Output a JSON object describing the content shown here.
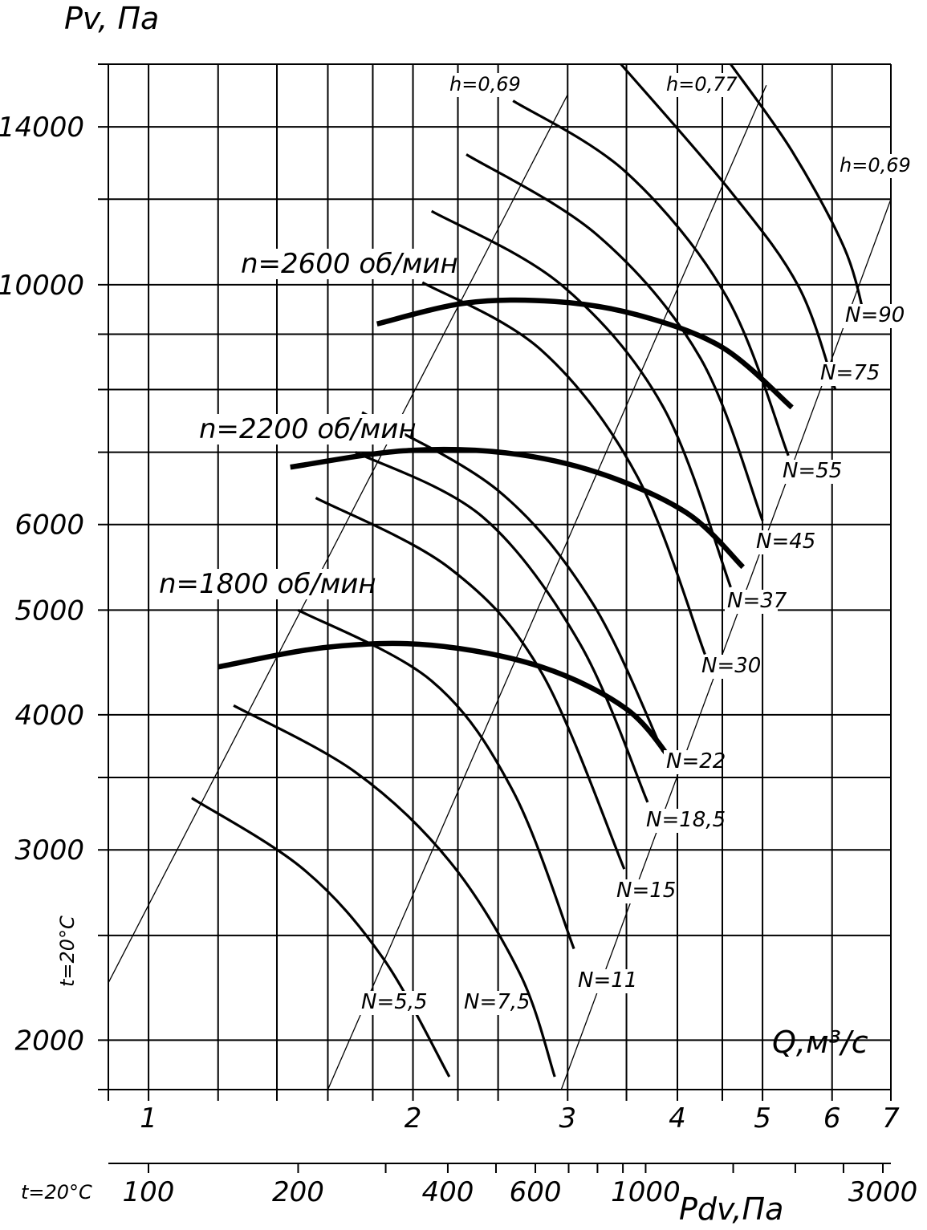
{
  "chart_data": {
    "type": "line",
    "title": "",
    "ylabel": "Pv, Па",
    "xlabel": "Q,м³/с",
    "x2label": "Pdv,Па",
    "temperature_label": "t=20°C",
    "yscale": "log",
    "xscale": "log",
    "ylim": [
      1800,
      16000
    ],
    "xlim": [
      0.9,
      7
    ],
    "y_ticks": [
      "14000",
      "10000",
      "6000",
      "5000",
      "4000",
      "3000",
      "2000"
    ],
    "x_ticks": [
      "1",
      "2",
      "3",
      "4",
      "5",
      "6",
      "7"
    ],
    "x2_ticks": [
      "100",
      "200",
      "400",
      "600",
      "1000",
      "3000"
    ],
    "speed_curves": [
      {
        "name": "n=2600 об/мин",
        "points": [
          [
            1.82,
            9200
          ],
          [
            2.3,
            9620
          ],
          [
            2.9,
            9650
          ],
          [
            3.6,
            9380
          ],
          [
            4.5,
            8750
          ],
          [
            5.4,
            7700
          ]
        ]
      },
      {
        "name": "n=2200 об/мин",
        "points": [
          [
            1.45,
            6780
          ],
          [
            1.95,
            7020
          ],
          [
            2.55,
            6990
          ],
          [
            3.25,
            6700
          ],
          [
            4.1,
            6150
          ],
          [
            4.75,
            5480
          ]
        ]
      },
      {
        "name": "n=1800 об/мин",
        "points": [
          [
            1.2,
            4430
          ],
          [
            1.6,
            4620
          ],
          [
            2.1,
            4640
          ],
          [
            2.8,
            4430
          ],
          [
            3.5,
            4050
          ],
          [
            3.95,
            3620
          ]
        ]
      }
    ],
    "power_curves": [
      {
        "name": "N=5,5",
        "points": [
          [
            1.12,
            3350
          ],
          [
            1.5,
            2880
          ],
          [
            1.85,
            2380
          ],
          [
            2.2,
            1850
          ]
        ]
      },
      {
        "name": "N=7,5",
        "points": [
          [
            1.25,
            4080
          ],
          [
            1.72,
            3540
          ],
          [
            2.2,
            2930
          ],
          [
            2.65,
            2300
          ],
          [
            2.9,
            1850
          ]
        ]
      },
      {
        "name": "N=11",
        "points": [
          [
            1.48,
            5000
          ],
          [
            2.1,
            4300
          ],
          [
            2.6,
            3400
          ],
          [
            3.05,
            2430
          ]
        ]
      },
      {
        "name": "N=15",
        "points": [
          [
            1.55,
            6350
          ],
          [
            2.2,
            5470
          ],
          [
            2.8,
            4380
          ],
          [
            3.48,
            2880
          ]
        ]
      },
      {
        "name": "N=18,5",
        "points": [
          [
            1.72,
            7000
          ],
          [
            2.4,
            6100
          ],
          [
            3.1,
            4650
          ],
          [
            3.7,
            3320
          ]
        ]
      },
      {
        "name": "N=22",
        "points": [
          [
            1.75,
            7620
          ],
          [
            2.5,
            6450
          ],
          [
            3.2,
            5080
          ],
          [
            3.85,
            3700
          ]
        ]
      },
      {
        "name": "N=30",
        "points": [
          [
            2.05,
            10050
          ],
          [
            2.8,
            8700
          ],
          [
            3.6,
            6650
          ],
          [
            4.3,
            4550
          ]
        ]
      },
      {
        "name": "N=37",
        "points": [
          [
            2.1,
            11700
          ],
          [
            2.95,
            10000
          ],
          [
            3.85,
            7720
          ],
          [
            4.6,
            5250
          ]
        ]
      },
      {
        "name": "N=45",
        "points": [
          [
            2.3,
            13200
          ],
          [
            3.25,
            11100
          ],
          [
            4.25,
            8550
          ],
          [
            5.0,
            6050
          ]
        ]
      },
      {
        "name": "N=55",
        "points": [
          [
            2.6,
            14800
          ],
          [
            3.5,
            12700
          ],
          [
            4.55,
            9750
          ],
          [
            5.35,
            6950
          ]
        ]
      },
      {
        "name": "N=75",
        "points": [
          [
            3.45,
            16000
          ],
          [
            4.6,
            12200
          ],
          [
            5.5,
            9950
          ],
          [
            6.05,
            8000
          ]
        ]
      },
      {
        "name": "N=90",
        "points": [
          [
            4.6,
            16000
          ],
          [
            5.4,
            13300
          ],
          [
            6.2,
            10800
          ],
          [
            6.55,
            9250
          ]
        ]
      }
    ],
    "efficiency_lines": [
      {
        "name": "h=0,69",
        "points": [
          [
            0.9,
            2260
          ],
          [
            3.0,
            15000
          ]
        ]
      },
      {
        "name": "h=0,77",
        "points": [
          [
            1.6,
            1800
          ],
          [
            5.05,
            15300
          ]
        ]
      },
      {
        "name": "h=0,69",
        "points": [
          [
            2.95,
            1800
          ],
          [
            7.0,
            12000
          ]
        ]
      }
    ]
  }
}
